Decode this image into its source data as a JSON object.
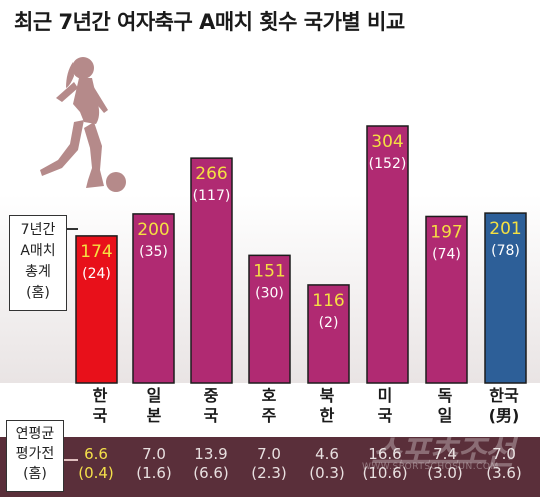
{
  "title": "최근 7년간 여자축구 A매치 횟수 국가별 비교",
  "legend": {
    "line1": "7년간",
    "line2": "A매치",
    "line3": "총계",
    "line4": "(홈)"
  },
  "avg_label": {
    "line1": "연평균",
    "line2": "평가전",
    "line3": "(홈)"
  },
  "watermark": {
    "text": "스포츠조선",
    "url": "WWW.SPORTSCHOSUN.COM"
  },
  "colors": {
    "highlight_bar": "#e8101a",
    "default_bar": "#b02a72",
    "men_bar": "#2d5f98",
    "value_label": "#f5e042",
    "home_label": "#ffffff",
    "silhouette": "#b58a8a",
    "avg_band": "#5a2f3a"
  },
  "chart_data": {
    "type": "bar",
    "title": "최근 7년간 여자축구 A매치 횟수 국가별 비교",
    "categories": [
      [
        "한",
        "국"
      ],
      [
        "일",
        "본"
      ],
      [
        "중",
        "국"
      ],
      [
        "호",
        "주"
      ],
      [
        "북",
        "한"
      ],
      [
        "미",
        "국"
      ],
      [
        "독",
        "일"
      ],
      [
        "한국",
        "(男)"
      ]
    ],
    "series": [
      {
        "name": "7년간 A매치 총계",
        "values": [
          174,
          200,
          266,
          151,
          116,
          304,
          197,
          201
        ]
      },
      {
        "name": "(홈)",
        "values": [
          24,
          35,
          117,
          30,
          2,
          152,
          74,
          78
        ]
      }
    ],
    "yearly_average": {
      "label": "연평균 평가전 (홈)",
      "values": [
        "6.6",
        "7.0",
        "13.9",
        "7.0",
        "4.6",
        "16.6",
        "7.4",
        "7.0"
      ],
      "home_values": [
        "(0.4)",
        "(1.6)",
        "(6.6)",
        "(2.3)",
        "(0.3)",
        "(10.6)",
        "(3.0)",
        "(3.6)"
      ]
    },
    "value_labels": [
      "174",
      "200",
      "266",
      "151",
      "116",
      "304",
      "197",
      "201"
    ],
    "home_labels": [
      "(24)",
      "(35)",
      "(117)",
      "(30)",
      "(2)",
      "(152)",
      "(74)",
      "(78)"
    ],
    "bar_styles": [
      "highlight",
      "default",
      "default",
      "default",
      "default",
      "default",
      "default",
      "men"
    ],
    "ylim": [
      0,
      304
    ],
    "grid": false
  }
}
